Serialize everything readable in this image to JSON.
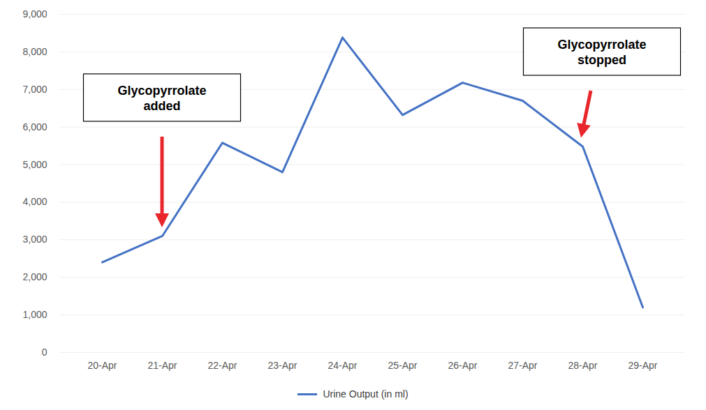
{
  "chart_data": {
    "type": "line",
    "categories": [
      "20-Apr",
      "21-Apr",
      "22-Apr",
      "23-Apr",
      "24-Apr",
      "25-Apr",
      "26-Apr",
      "27-Apr",
      "28-Apr",
      "29-Apr"
    ],
    "series": [
      {
        "name": "Urine Output (in ml)",
        "color": "#4472c4",
        "values": [
          2400,
          3100,
          5580,
          4800,
          8380,
          6320,
          7180,
          6700,
          5480,
          1200
        ]
      }
    ],
    "ylim": [
      0,
      9000
    ],
    "yticks": [
      0,
      1000,
      2000,
      3000,
      4000,
      5000,
      6000,
      7000,
      8000,
      9000
    ],
    "grid": true,
    "legend": "bottom",
    "annotations": [
      {
        "text": "Glycopyrrolate added",
        "x": "21-Apr"
      },
      {
        "text": "Glycopyrrolate stopped",
        "x": "28-Apr"
      }
    ]
  }
}
